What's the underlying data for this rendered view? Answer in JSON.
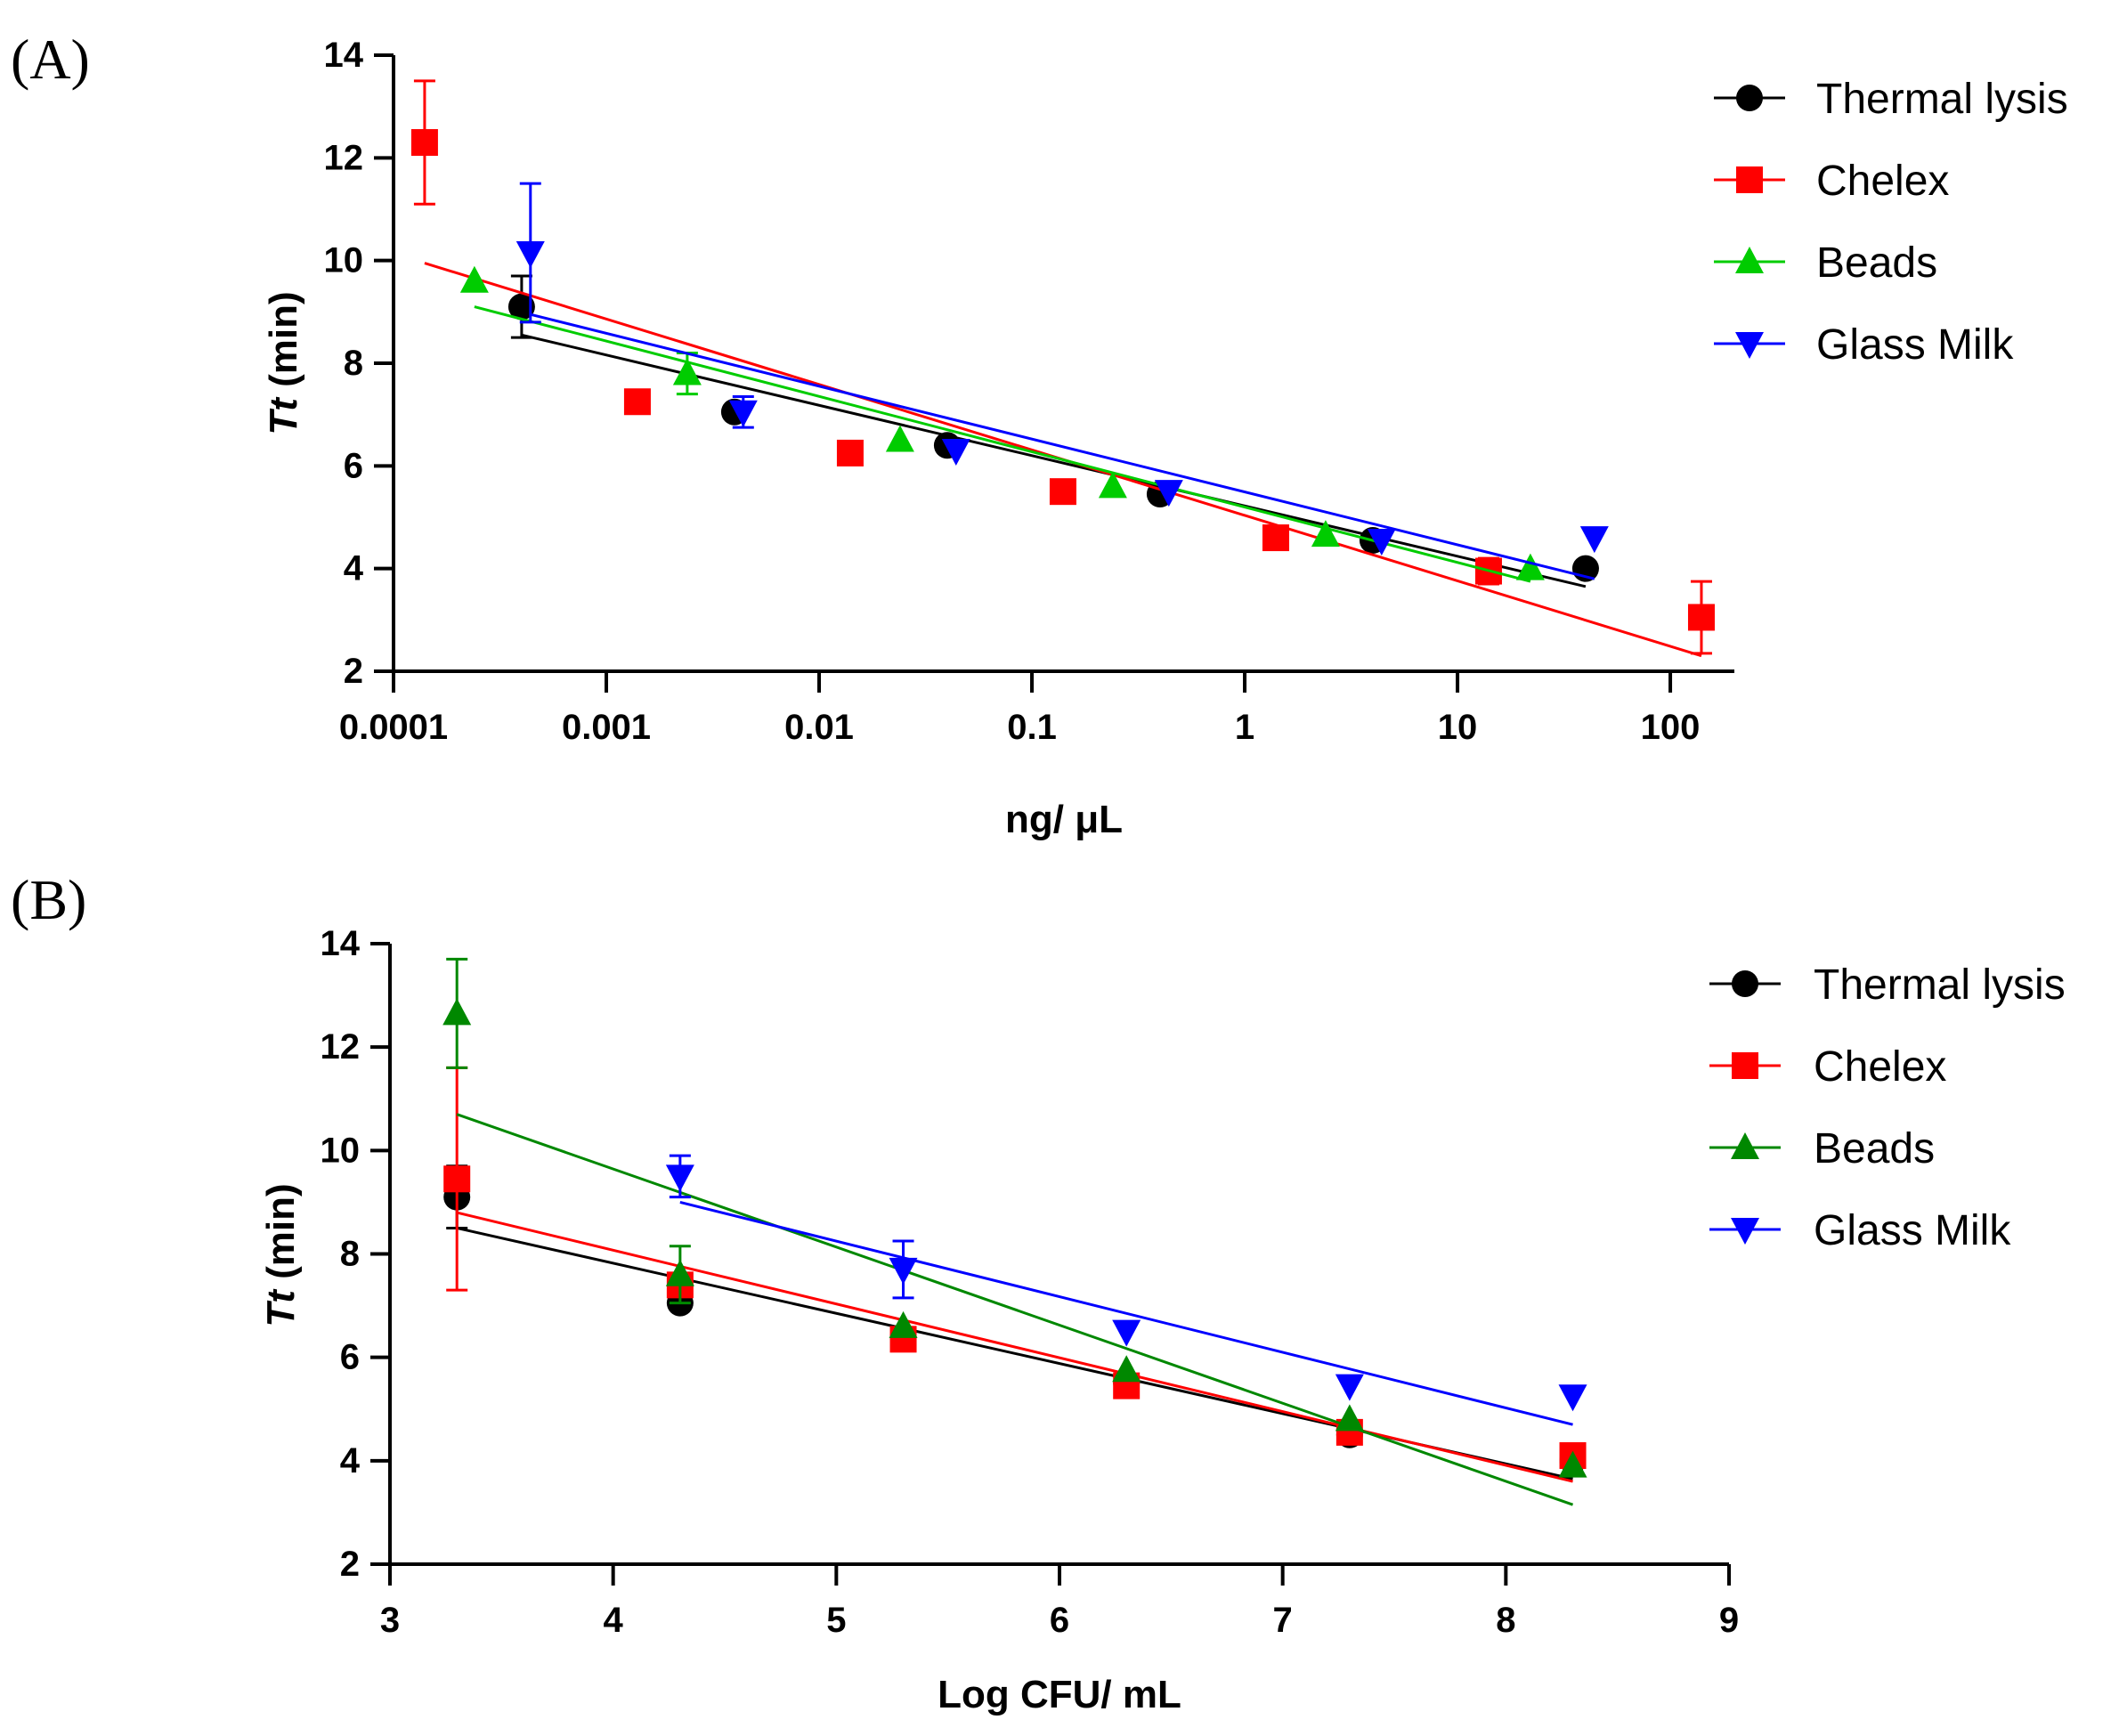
{
  "chart_data": [
    {
      "panel_label": "(A)",
      "type": "scatter",
      "xscale": "log",
      "xlabel": "ng/ μL",
      "ylabel": {
        "italic": "Tt",
        "rest": " (min)"
      },
      "xlim": [
        0.0001,
        200
      ],
      "ylim": [
        2,
        14
      ],
      "xticks": [
        0.0001,
        0.001,
        0.01,
        0.1,
        1,
        10,
        100
      ],
      "xtick_labels": [
        "0.0001",
        "0.001",
        "0.01",
        "0.1",
        "1",
        "10",
        "100"
      ],
      "yticks": [
        2,
        4,
        6,
        8,
        10,
        12,
        14
      ],
      "ytick_labels": [
        "2",
        "4",
        "6",
        "8",
        "10",
        "12",
        "14"
      ],
      "legend": "top-right",
      "series": [
        {
          "name": "Thermal lysis",
          "color": "#000000",
          "marker": "circle",
          "x": [
            0.0004,
            0.004,
            0.04,
            0.4,
            4,
            40
          ],
          "y": [
            9.1,
            7.05,
            6.4,
            5.45,
            4.55,
            4.0
          ],
          "err": [
            0.6,
            0,
            0,
            0,
            0,
            0
          ],
          "fit": {
            "x": [
              0.0004,
              40
            ],
            "y": [
              8.55,
              3.65
            ]
          }
        },
        {
          "name": "Chelex",
          "color": "#ff0000",
          "marker": "square",
          "x": [
            0.00014,
            0.0014,
            0.014,
            0.14,
            1.4,
            14,
            140
          ],
          "y": [
            12.3,
            7.25,
            6.25,
            5.5,
            4.6,
            3.95,
            3.05
          ],
          "err": [
            1.2,
            0,
            0,
            0,
            0,
            0.25,
            0.7
          ],
          "fit": {
            "x": [
              0.00014,
              140
            ],
            "y": [
              9.95,
              2.3
            ]
          }
        },
        {
          "name": "Beads",
          "color": "#00cc00",
          "marker": "triangle-up",
          "x": [
            0.00024,
            0.0024,
            0.024,
            0.24,
            2.4,
            22
          ],
          "y": [
            9.6,
            7.8,
            6.5,
            5.6,
            4.65,
            4.0
          ],
          "err": [
            0,
            0.4,
            0,
            0,
            0,
            0
          ],
          "fit": {
            "x": [
              0.00024,
              22
            ],
            "y": [
              9.1,
              3.75
            ]
          }
        },
        {
          "name": "Glass Milk",
          "color": "#0000ff",
          "marker": "triangle-down",
          "x": [
            0.00044,
            0.0044,
            0.044,
            0.44,
            4.4,
            44
          ],
          "y": [
            10.15,
            7.05,
            6.3,
            5.5,
            4.55,
            4.6
          ],
          "err": [
            1.35,
            0.3,
            0,
            0,
            0,
            0
          ],
          "fit": {
            "x": [
              0.00044,
              44
            ],
            "y": [
              8.95,
              3.8
            ]
          }
        }
      ]
    },
    {
      "panel_label": "(B)",
      "type": "scatter",
      "xscale": "linear",
      "xlabel": "Log CFU/ mL",
      "ylabel": {
        "italic": "Tt",
        "rest": " (min)"
      },
      "xlim": [
        3,
        9
      ],
      "ylim": [
        2,
        14
      ],
      "xticks": [
        3,
        4,
        5,
        6,
        7,
        8,
        9
      ],
      "xtick_labels": [
        "3",
        "4",
        "5",
        "6",
        "7",
        "8",
        "9"
      ],
      "yticks": [
        2,
        4,
        6,
        8,
        10,
        12,
        14
      ],
      "ytick_labels": [
        "2",
        "4",
        "6",
        "8",
        "10",
        "12",
        "14"
      ],
      "legend": "top-right",
      "series": [
        {
          "name": "Thermal lysis",
          "color": "#000000",
          "marker": "circle",
          "x": [
            3.3,
            4.3,
            5.3,
            6.3,
            7.3,
            8.3
          ],
          "y": [
            9.1,
            7.05,
            6.4,
            5.5,
            4.5,
            4.0
          ],
          "err": [
            0.6,
            0,
            0,
            0,
            0,
            0
          ],
          "fit": {
            "x": [
              3.3,
              8.3
            ],
            "y": [
              8.5,
              3.65
            ]
          }
        },
        {
          "name": "Chelex",
          "color": "#ff0000",
          "marker": "square",
          "x": [
            3.3,
            4.3,
            5.3,
            6.3,
            7.3,
            8.3
          ],
          "y": [
            9.45,
            7.4,
            6.35,
            5.45,
            4.55,
            4.1
          ],
          "err": [
            2.15,
            0,
            0,
            0,
            0,
            0
          ],
          "fit": {
            "x": [
              3.3,
              8.3
            ],
            "y": [
              8.8,
              3.6
            ]
          }
        },
        {
          "name": "Beads",
          "color": "#008800",
          "marker": "triangle-up",
          "x": [
            3.3,
            4.3,
            5.3,
            6.3,
            7.3,
            8.3
          ],
          "y": [
            12.65,
            7.6,
            6.6,
            5.75,
            4.8,
            3.9
          ],
          "err": [
            1.05,
            0.55,
            0,
            0,
            0,
            0
          ],
          "fit": {
            "x": [
              3.3,
              8.3
            ],
            "y": [
              10.7,
              3.15
            ]
          }
        },
        {
          "name": "Glass Milk",
          "color": "#0000ff",
          "marker": "triangle-down",
          "x": [
            4.3,
            5.3,
            6.3,
            7.3,
            8.3
          ],
          "y": [
            9.5,
            7.7,
            6.5,
            5.45,
            5.25
          ],
          "err": [
            0.4,
            0.55,
            0,
            0,
            0
          ],
          "fit": {
            "x": [
              4.3,
              8.3
            ],
            "y": [
              9.0,
              4.7
            ]
          }
        }
      ]
    }
  ]
}
